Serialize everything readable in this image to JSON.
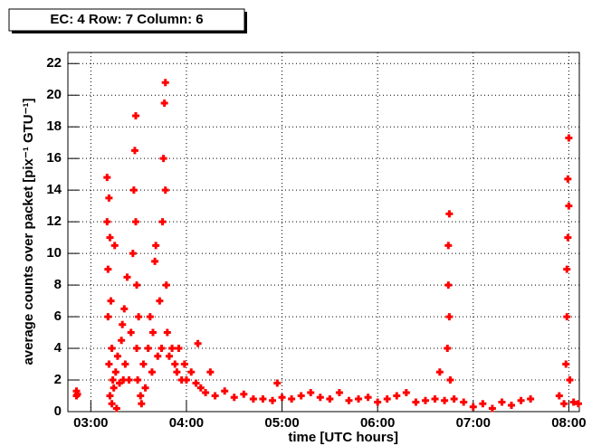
{
  "chart_data": {
    "type": "scatter",
    "title": "EC: 4 Row: 7 Column: 6",
    "x_label": "time [UTC hours]",
    "y_label": "average counts over packet [pix⁻¹ GTU⁻¹]",
    "color": "#ff0000",
    "grid": true,
    "xlim": [
      2.76,
      8.11
    ],
    "ylim": [
      0,
      22.7
    ],
    "xticks": [
      {
        "value": 3,
        "label": "03:00"
      },
      {
        "value": 4,
        "label": "04:00"
      },
      {
        "value": 5,
        "label": "05:00"
      },
      {
        "value": 6,
        "label": "06:00"
      },
      {
        "value": 7,
        "label": "07:00"
      },
      {
        "value": 8,
        "label": "08:00"
      }
    ],
    "yticks": [
      0,
      2,
      4,
      6,
      8,
      10,
      12,
      14,
      16,
      18,
      20,
      22
    ],
    "x": [
      2.85,
      2.85,
      2.86,
      3.17,
      3.17,
      3.18,
      3.18,
      3.19,
      3.19,
      3.2,
      3.2,
      3.21,
      3.22,
      3.22,
      3.23,
      3.24,
      3.25,
      3.26,
      3.27,
      3.28,
      3.3,
      3.32,
      3.33,
      3.34,
      3.35,
      3.36,
      3.38,
      3.4,
      3.42,
      3.44,
      3.45,
      3.46,
      3.47,
      3.47,
      3.48,
      3.48,
      3.49,
      3.5,
      3.52,
      3.53,
      3.55,
      3.57,
      3.6,
      3.62,
      3.64,
      3.65,
      3.67,
      3.68,
      3.7,
      3.72,
      3.74,
      3.75,
      3.76,
      3.77,
      3.78,
      3.78,
      3.79,
      3.8,
      3.82,
      3.85,
      3.88,
      3.9,
      3.92,
      3.95,
      3.98,
      4.0,
      4.05,
      4.1,
      4.12,
      4.15,
      4.2,
      4.25,
      4.3,
      4.4,
      4.5,
      4.6,
      4.7,
      4.8,
      4.9,
      4.95,
      5.0,
      5.1,
      5.2,
      5.3,
      5.4,
      5.5,
      5.6,
      5.7,
      5.8,
      5.9,
      6.0,
      6.1,
      6.2,
      6.3,
      6.4,
      6.5,
      6.6,
      6.65,
      6.7,
      6.73,
      6.74,
      6.74,
      6.75,
      6.75,
      6.76,
      6.8,
      6.9,
      7.0,
      7.1,
      7.2,
      7.3,
      7.4,
      7.5,
      7.6,
      7.9,
      7.95,
      7.97,
      7.98,
      7.98,
      7.99,
      7.99,
      8.0,
      8.0,
      8.01,
      8.05,
      8.1
    ],
    "values": [
      1.0,
      1.3,
      1.1,
      14.8,
      12,
      9,
      6,
      13.5,
      3,
      1,
      11,
      7,
      0.5,
      4,
      2,
      1.5,
      10.5,
      2.5,
      0.2,
      3.5,
      1.8,
      4.5,
      5.5,
      2,
      6.5,
      3,
      8.5,
      2,
      5,
      10,
      14,
      16.5,
      18.7,
      12,
      8,
      4,
      2,
      6,
      1,
      0.5,
      3,
      1.5,
      4,
      6,
      2.5,
      5,
      9.5,
      10.5,
      3.5,
      7,
      4,
      12,
      16,
      19.5,
      20.8,
      14,
      8,
      5,
      3.5,
      4,
      3,
      2.5,
      4,
      2,
      3,
      2,
      2.5,
      1.8,
      4.3,
      1.5,
      1.2,
      2.5,
      1.0,
      1.3,
      0.9,
      1.1,
      0.8,
      0.8,
      0.7,
      1.8,
      0.9,
      0.8,
      1.0,
      1.2,
      0.9,
      0.8,
      1.2,
      0.7,
      0.8,
      0.9,
      0.6,
      0.8,
      1.0,
      1.2,
      0.6,
      0.7,
      0.8,
      2.5,
      0.7,
      4,
      8,
      10.5,
      12.5,
      6,
      2,
      0.8,
      0.6,
      0.3,
      0.5,
      0.2,
      0.6,
      0.4,
      0.7,
      0.8,
      1.0,
      0.5,
      3,
      6,
      9,
      11,
      14.7,
      17.3,
      13,
      2,
      0.6,
      0.5
    ]
  }
}
